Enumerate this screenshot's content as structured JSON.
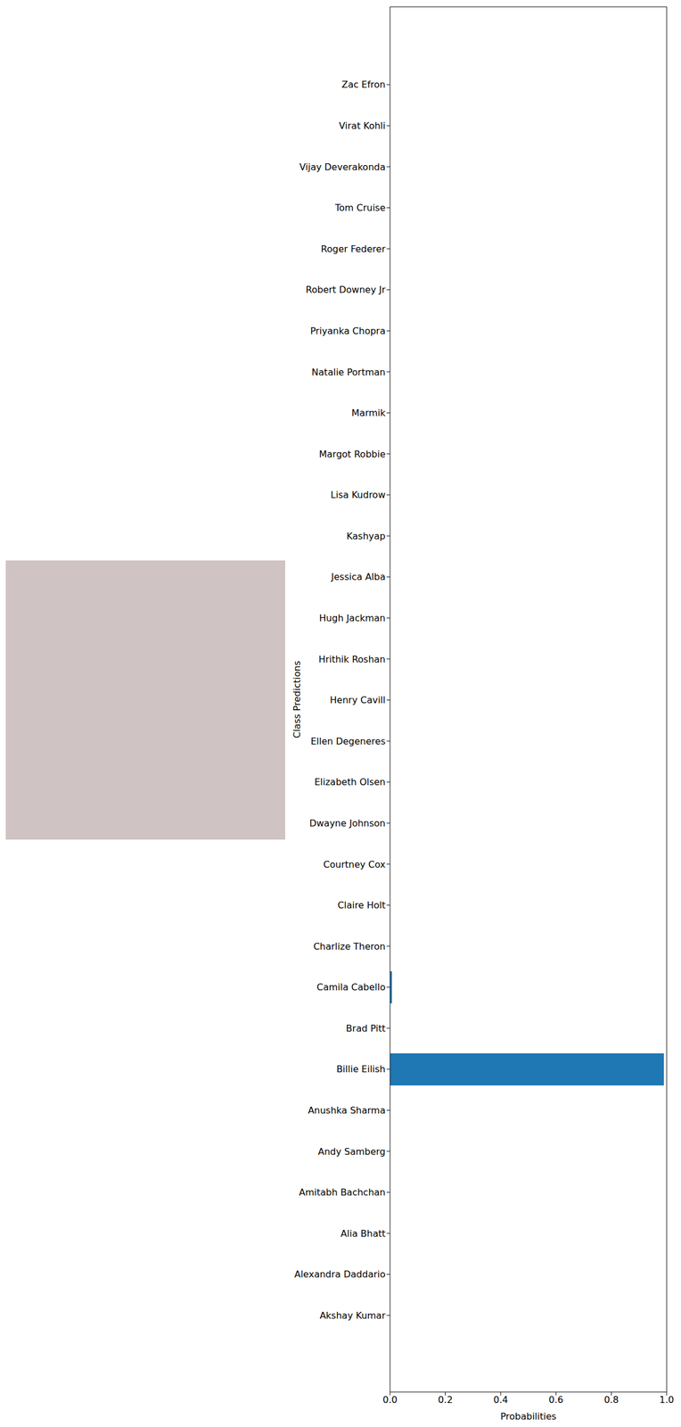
{
  "chart_data": {
    "type": "bar",
    "orientation": "horizontal",
    "x_label": "Probabilities",
    "y_label": "Class Predictions",
    "categories": [
      "Akshay Kumar",
      "Alexandra Daddario",
      "Alia Bhatt",
      "Amitabh Bachchan",
      "Andy Samberg",
      "Anushka Sharma",
      "Billie Eilish",
      "Brad Pitt",
      "Camila Cabello",
      "Charlize Theron",
      "Claire Holt",
      "Courtney Cox",
      "Dwayne Johnson",
      "Elizabeth Olsen",
      "Ellen Degeneres",
      "Henry Cavill",
      "Hrithik Roshan",
      "Hugh Jackman",
      "Jessica Alba",
      "Kashyap",
      "Lisa Kudrow",
      "Margot Robbie",
      "Marmik",
      "Natalie Portman",
      "Priyanka Chopra",
      "Robert Downey Jr",
      "Roger Federer",
      "Tom Cruise",
      "Vijay Deverakonda",
      "Virat Kohli",
      "Zac Efron"
    ],
    "values": [
      0,
      0,
      0,
      0,
      0,
      0,
      0.99,
      0,
      0.007,
      0,
      0,
      0,
      0,
      0,
      0,
      0,
      0,
      0,
      0,
      0,
      0,
      0,
      0,
      0,
      0,
      0,
      0,
      0,
      0,
      0,
      0
    ],
    "color": "#1f77b4",
    "xlim": [
      0,
      1
    ],
    "xticks": [
      {
        "value": 0,
        "label": "0.0"
      },
      0.2,
      0.4,
      0.6,
      0.8,
      {
        "value": 1,
        "label": "1.0"
      }
    ],
    "grid": false
  }
}
